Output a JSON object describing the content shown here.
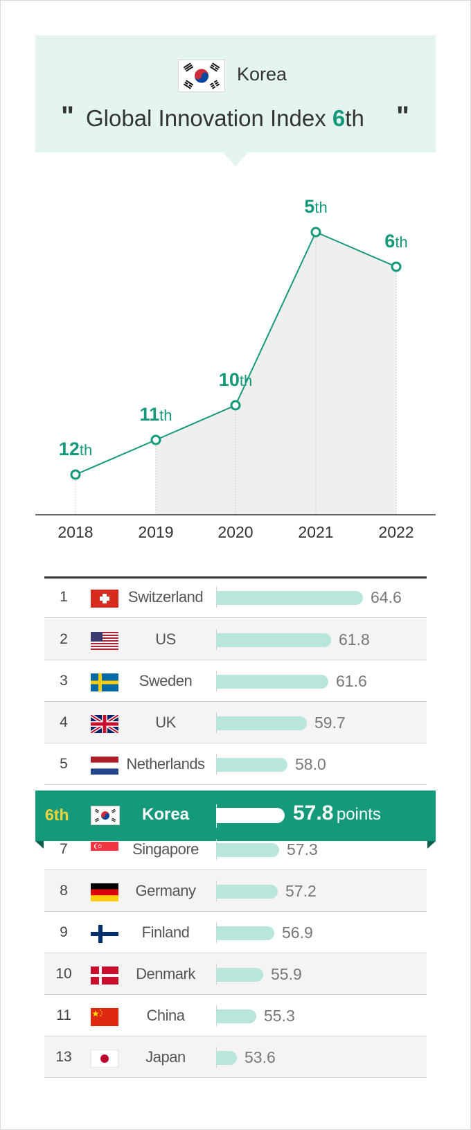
{
  "header": {
    "country": "Korea",
    "quote_open": "\"",
    "quote_close": "\"",
    "title_prefix": "Global Innovation Index ",
    "title_rank_num": "6",
    "title_rank_suffix": "th",
    "flag_icon": "korea-flag-icon"
  },
  "colors": {
    "accent": "#149a7a",
    "header_bg": "#e3f4f1",
    "bar_fill": "#b9e6dc",
    "highlight_rank": "#f2d33b"
  },
  "chart_data": [
    {
      "type": "line",
      "title": "",
      "x": [
        "2018",
        "2019",
        "2020",
        "2021",
        "2022"
      ],
      "series": [
        {
          "values": [
            12,
            11,
            10,
            5,
            6
          ],
          "labels": [
            "12th",
            "11th",
            "10th",
            "5th",
            "6th"
          ]
        }
      ],
      "y_inverted": true,
      "xlabel": "",
      "ylabel": "",
      "grid": false
    },
    {
      "type": "bar",
      "orientation": "horizontal",
      "value_unit": "points",
      "rows": [
        {
          "rank": "1",
          "country": "Switzerland",
          "value": 64.6,
          "value_label": "64.6",
          "flag": "switzerland-flag-icon"
        },
        {
          "rank": "2",
          "country": "US",
          "value": 61.8,
          "value_label": "61.8",
          "flag": "us-flag-icon"
        },
        {
          "rank": "3",
          "country": "Sweden",
          "value": 61.6,
          "value_label": "61.6",
          "flag": "sweden-flag-icon"
        },
        {
          "rank": "4",
          "country": "UK",
          "value": 59.7,
          "value_label": "59.7",
          "flag": "uk-flag-icon"
        },
        {
          "rank": "5",
          "country": "Netherlands",
          "value": 58.0,
          "value_label": "58.0",
          "flag": "netherlands-flag-icon"
        },
        {
          "rank": "6th",
          "country": "Korea",
          "value": 57.8,
          "value_label": "57.8",
          "unit_label": "points",
          "flag": "korea-flag-icon",
          "highlight": true
        },
        {
          "rank": "7",
          "country": "Singapore",
          "value": 57.3,
          "value_label": "57.3",
          "flag": "singapore-flag-icon"
        },
        {
          "rank": "8",
          "country": "Germany",
          "value": 57.2,
          "value_label": "57.2",
          "flag": "germany-flag-icon"
        },
        {
          "rank": "9",
          "country": "Finland",
          "value": 56.9,
          "value_label": "56.9",
          "flag": "finland-flag-icon"
        },
        {
          "rank": "10",
          "country": "Denmark",
          "value": 55.9,
          "value_label": "55.9",
          "flag": "denmark-flag-icon"
        },
        {
          "rank": "11",
          "country": "China",
          "value": 55.3,
          "value_label": "55.3",
          "flag": "china-flag-icon"
        },
        {
          "rank": "13",
          "country": "Japan",
          "value": 53.6,
          "value_label": "53.6",
          "flag": "japan-flag-icon"
        }
      ]
    }
  ]
}
